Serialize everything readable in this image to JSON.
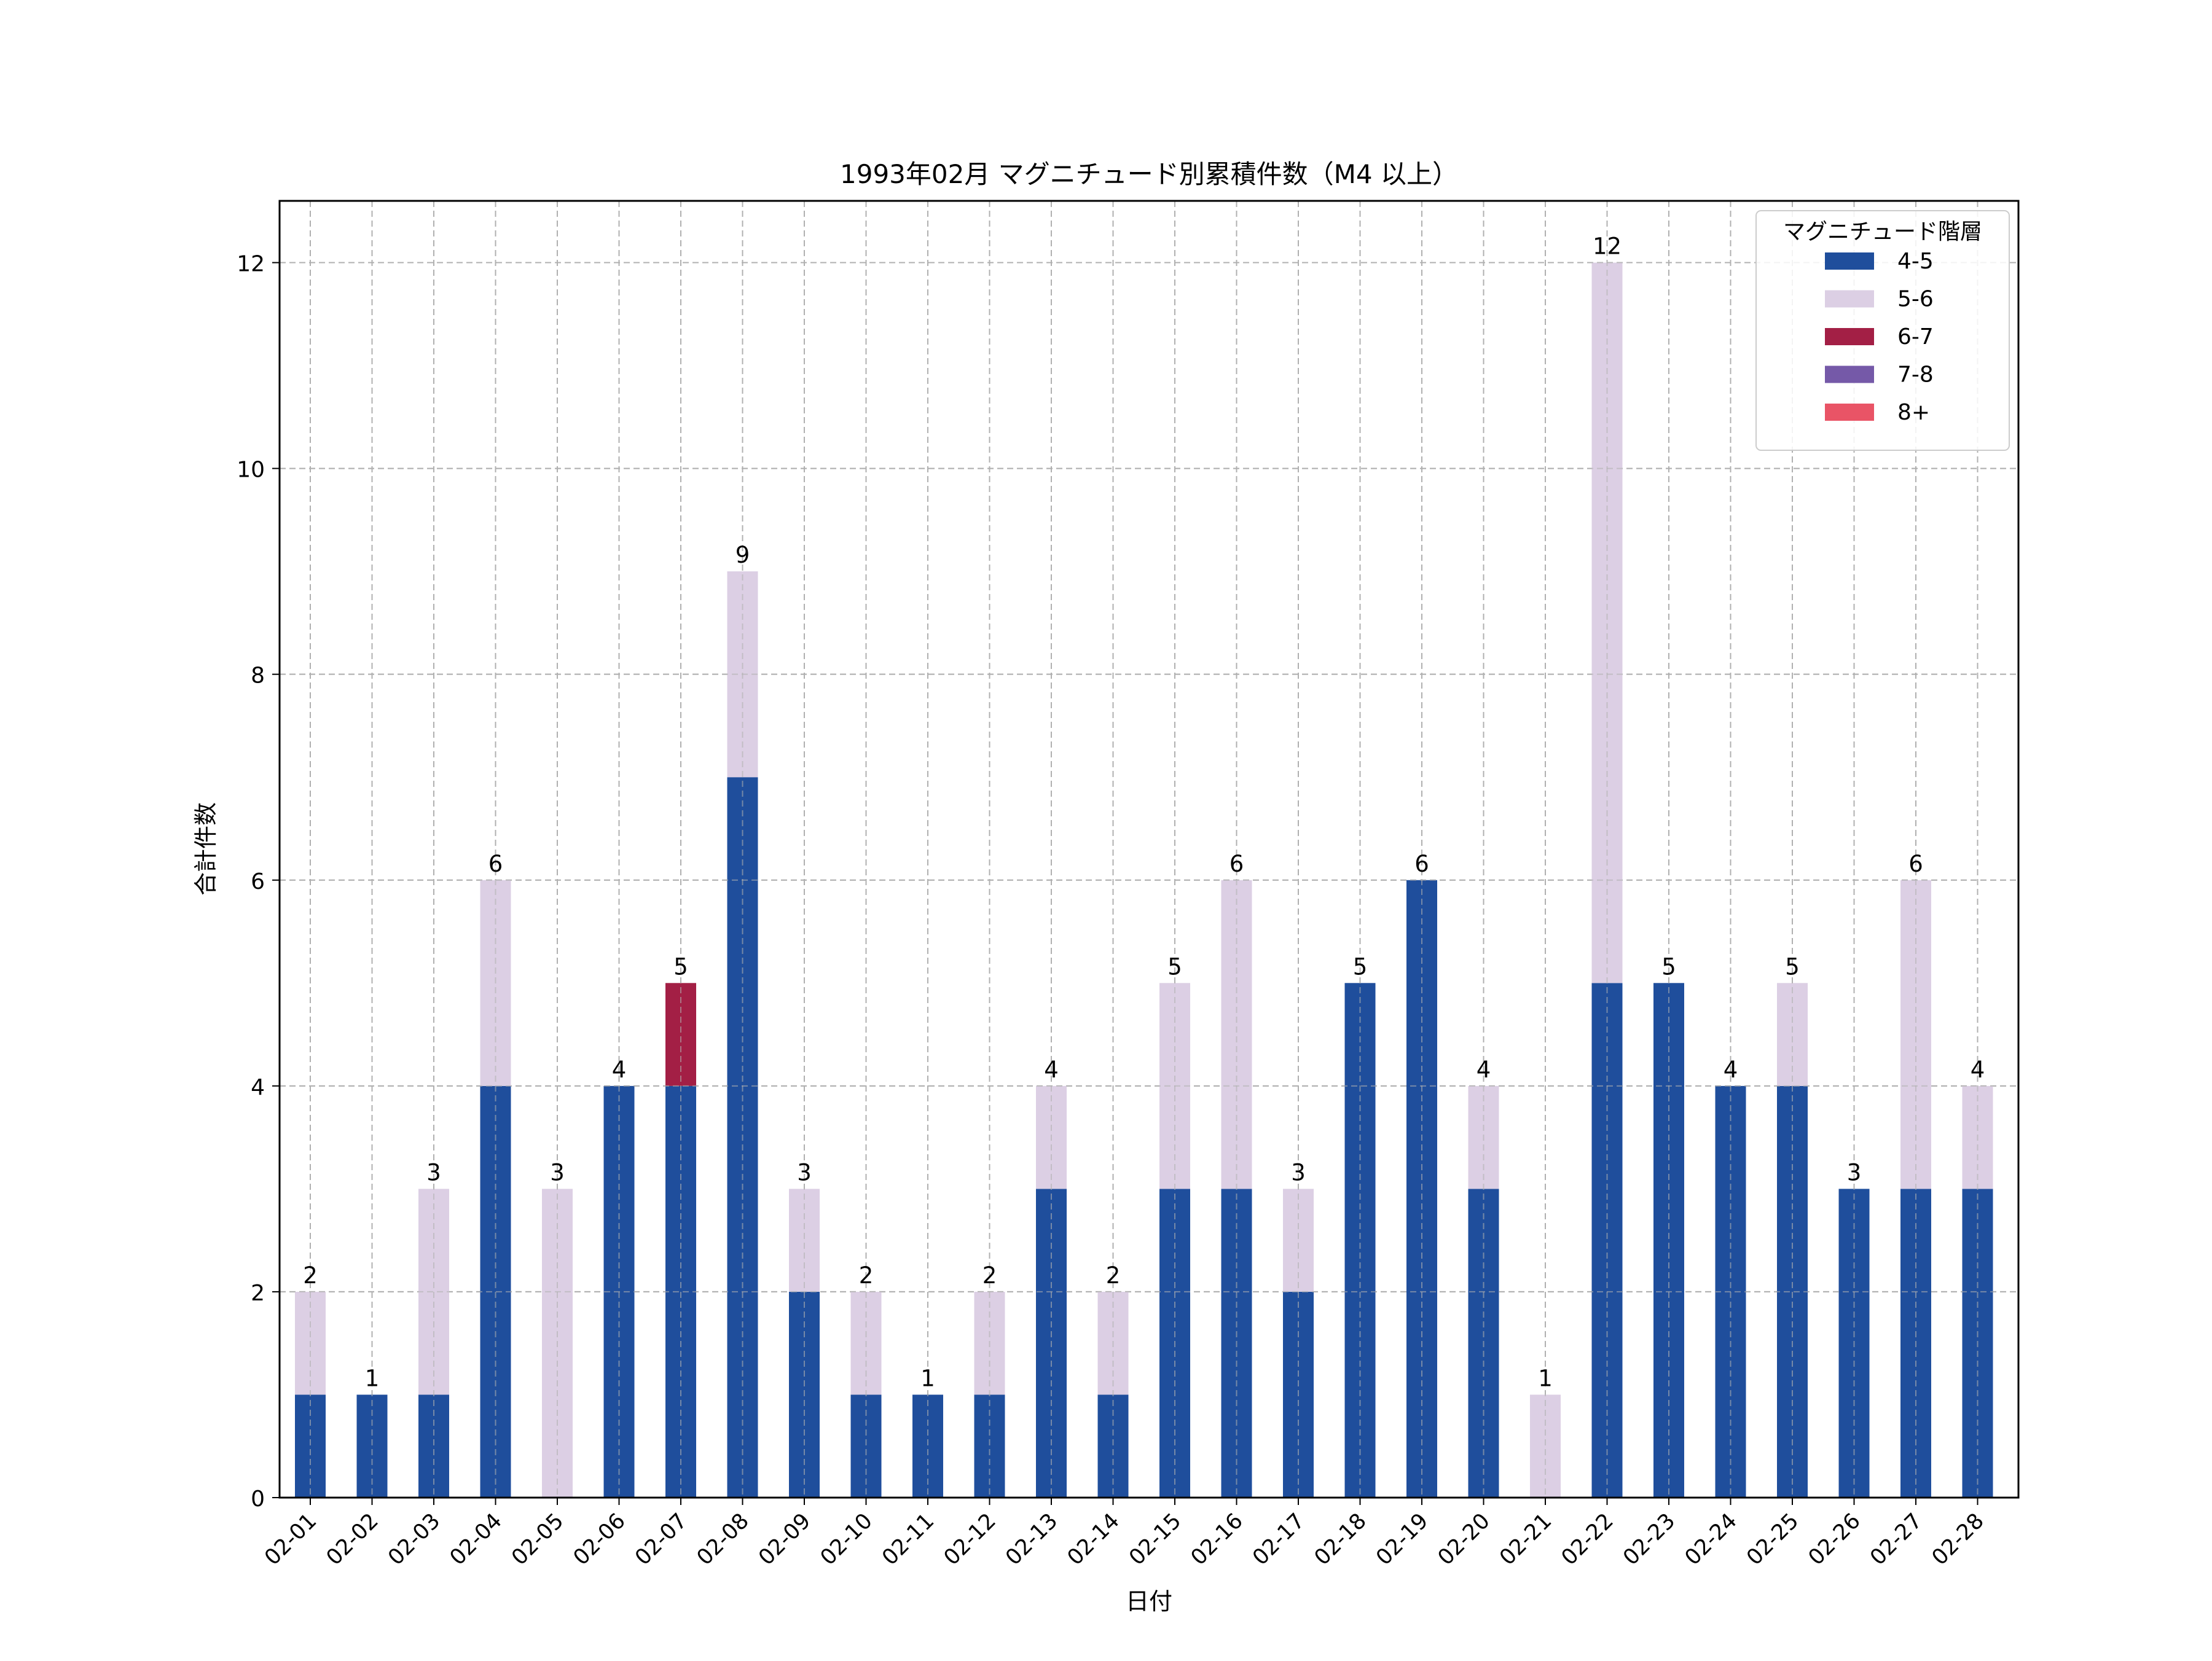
{
  "chart_data": {
    "type": "bar",
    "stacked": true,
    "title": "1993年02月 マグニチュード別累積件数（M4 以上）",
    "xlabel": "日付",
    "ylabel": "合計件数",
    "ylim": [
      0,
      12.6
    ],
    "yticks": [
      0,
      2,
      4,
      6,
      8,
      10,
      12
    ],
    "grid": true,
    "legend": {
      "title": "マグニチュード階層",
      "placement": "top-right"
    },
    "categories": [
      "02-01",
      "02-02",
      "02-03",
      "02-04",
      "02-05",
      "02-06",
      "02-07",
      "02-08",
      "02-09",
      "02-10",
      "02-11",
      "02-12",
      "02-13",
      "02-14",
      "02-15",
      "02-16",
      "02-17",
      "02-18",
      "02-19",
      "02-20",
      "02-21",
      "02-22",
      "02-23",
      "02-24",
      "02-25",
      "02-26",
      "02-27",
      "02-28"
    ],
    "series": [
      {
        "name": "4-5",
        "color": "#1f4e9c",
        "values": [
          1,
          1,
          1,
          4,
          0,
          4,
          4,
          7,
          2,
          1,
          1,
          1,
          3,
          1,
          3,
          3,
          2,
          5,
          6,
          3,
          0,
          5,
          5,
          4,
          4,
          3,
          3,
          3
        ]
      },
      {
        "name": "5-6",
        "color": "#dccfe4",
        "values": [
          1,
          0,
          2,
          2,
          3,
          0,
          0,
          2,
          1,
          1,
          0,
          1,
          1,
          1,
          2,
          3,
          1,
          0,
          0,
          1,
          1,
          7,
          0,
          0,
          1,
          0,
          3,
          1
        ]
      },
      {
        "name": "6-7",
        "color": "#a31f45",
        "values": [
          0,
          0,
          0,
          0,
          0,
          0,
          1,
          0,
          0,
          0,
          0,
          0,
          0,
          0,
          0,
          0,
          0,
          0,
          0,
          0,
          0,
          0,
          0,
          0,
          0,
          0,
          0,
          0
        ]
      },
      {
        "name": "7-8",
        "color": "#7559a8",
        "values": [
          0,
          0,
          0,
          0,
          0,
          0,
          0,
          0,
          0,
          0,
          0,
          0,
          0,
          0,
          0,
          0,
          0,
          0,
          0,
          0,
          0,
          0,
          0,
          0,
          0,
          0,
          0,
          0
        ]
      },
      {
        "name": "8+",
        "color": "#e95466",
        "values": [
          0,
          0,
          0,
          0,
          0,
          0,
          0,
          0,
          0,
          0,
          0,
          0,
          0,
          0,
          0,
          0,
          0,
          0,
          0,
          0,
          0,
          0,
          0,
          0,
          0,
          0,
          0,
          0
        ]
      }
    ],
    "totals": [
      2,
      1,
      3,
      6,
      3,
      4,
      5,
      9,
      3,
      2,
      1,
      2,
      4,
      2,
      5,
      6,
      3,
      5,
      6,
      4,
      1,
      12,
      5,
      4,
      5,
      3,
      6,
      4
    ]
  }
}
